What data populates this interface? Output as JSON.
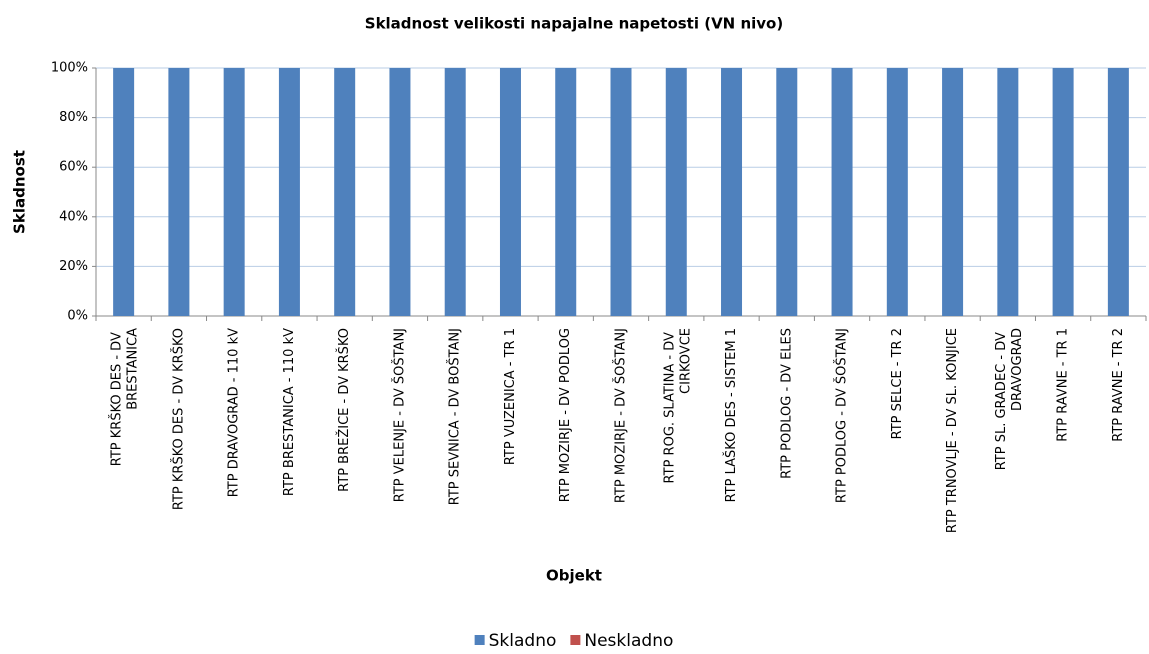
{
  "chart_data": {
    "type": "stacked_bar",
    "title": "Skladnost velikosti napajalne napetosti (VN nivo)",
    "x_label": "Objekt",
    "y_label": "Skladnost",
    "categories": [
      "RTP KRŠKO DES - DV BRESTANICA",
      "RTP KRŠKO DES - DV KRŠKO",
      "RTP DRAVOGRAD - 110 kV",
      "RTP BRESTANICA - 110 kV",
      "RTP BREŽICE - DV KRŠKO",
      "RTP VELENJE - DV ŠOŠTANJ",
      "RTP SEVNICA - DV BOŠTANJ",
      "RTP VUZENICA - TR 1",
      "RTP MOZIRJE - DV PODLOG",
      "RTP MOZIRJE - DV ŠOŠTANJ",
      "RTP ROG. SLATINA - DV CIRKOVCE",
      "RTP LAŠKO DES - SISTEM 1",
      "RTP PODLOG - DV ELES",
      "RTP PODLOG - DV ŠOŠTANJ",
      "RTP SELCE - TR 2",
      "RTP TRNOVLJE - DV SL. KONJICE",
      "RTP SL. GRADEC - DV DRAVOGRAD",
      "RTP RAVNE - TR 1",
      "RTP RAVNE - TR 2"
    ],
    "series": [
      {
        "name": "Skladno",
        "color": "#4f81bd",
        "values": [
          100,
          100,
          100,
          100,
          100,
          100,
          100,
          100,
          100,
          100,
          100,
          100,
          100,
          100,
          100,
          100,
          100,
          100,
          100
        ]
      },
      {
        "name": "Neskladno",
        "color": "#c0504d",
        "values": [
          0,
          0,
          0,
          0,
          0,
          0,
          0,
          0,
          0,
          0,
          0,
          0,
          0,
          0,
          0,
          0,
          0,
          0,
          0
        ]
      }
    ],
    "ylim": [
      0,
      100
    ],
    "yticks": [
      {
        "value": 0,
        "label": "0%"
      },
      {
        "value": 20,
        "label": "20%"
      },
      {
        "value": 40,
        "label": "40%"
      },
      {
        "value": 60,
        "label": "60%"
      },
      {
        "value": 80,
        "label": "80%"
      },
      {
        "value": 100,
        "label": "100%"
      }
    ],
    "grid": true,
    "legend": "bottom"
  }
}
